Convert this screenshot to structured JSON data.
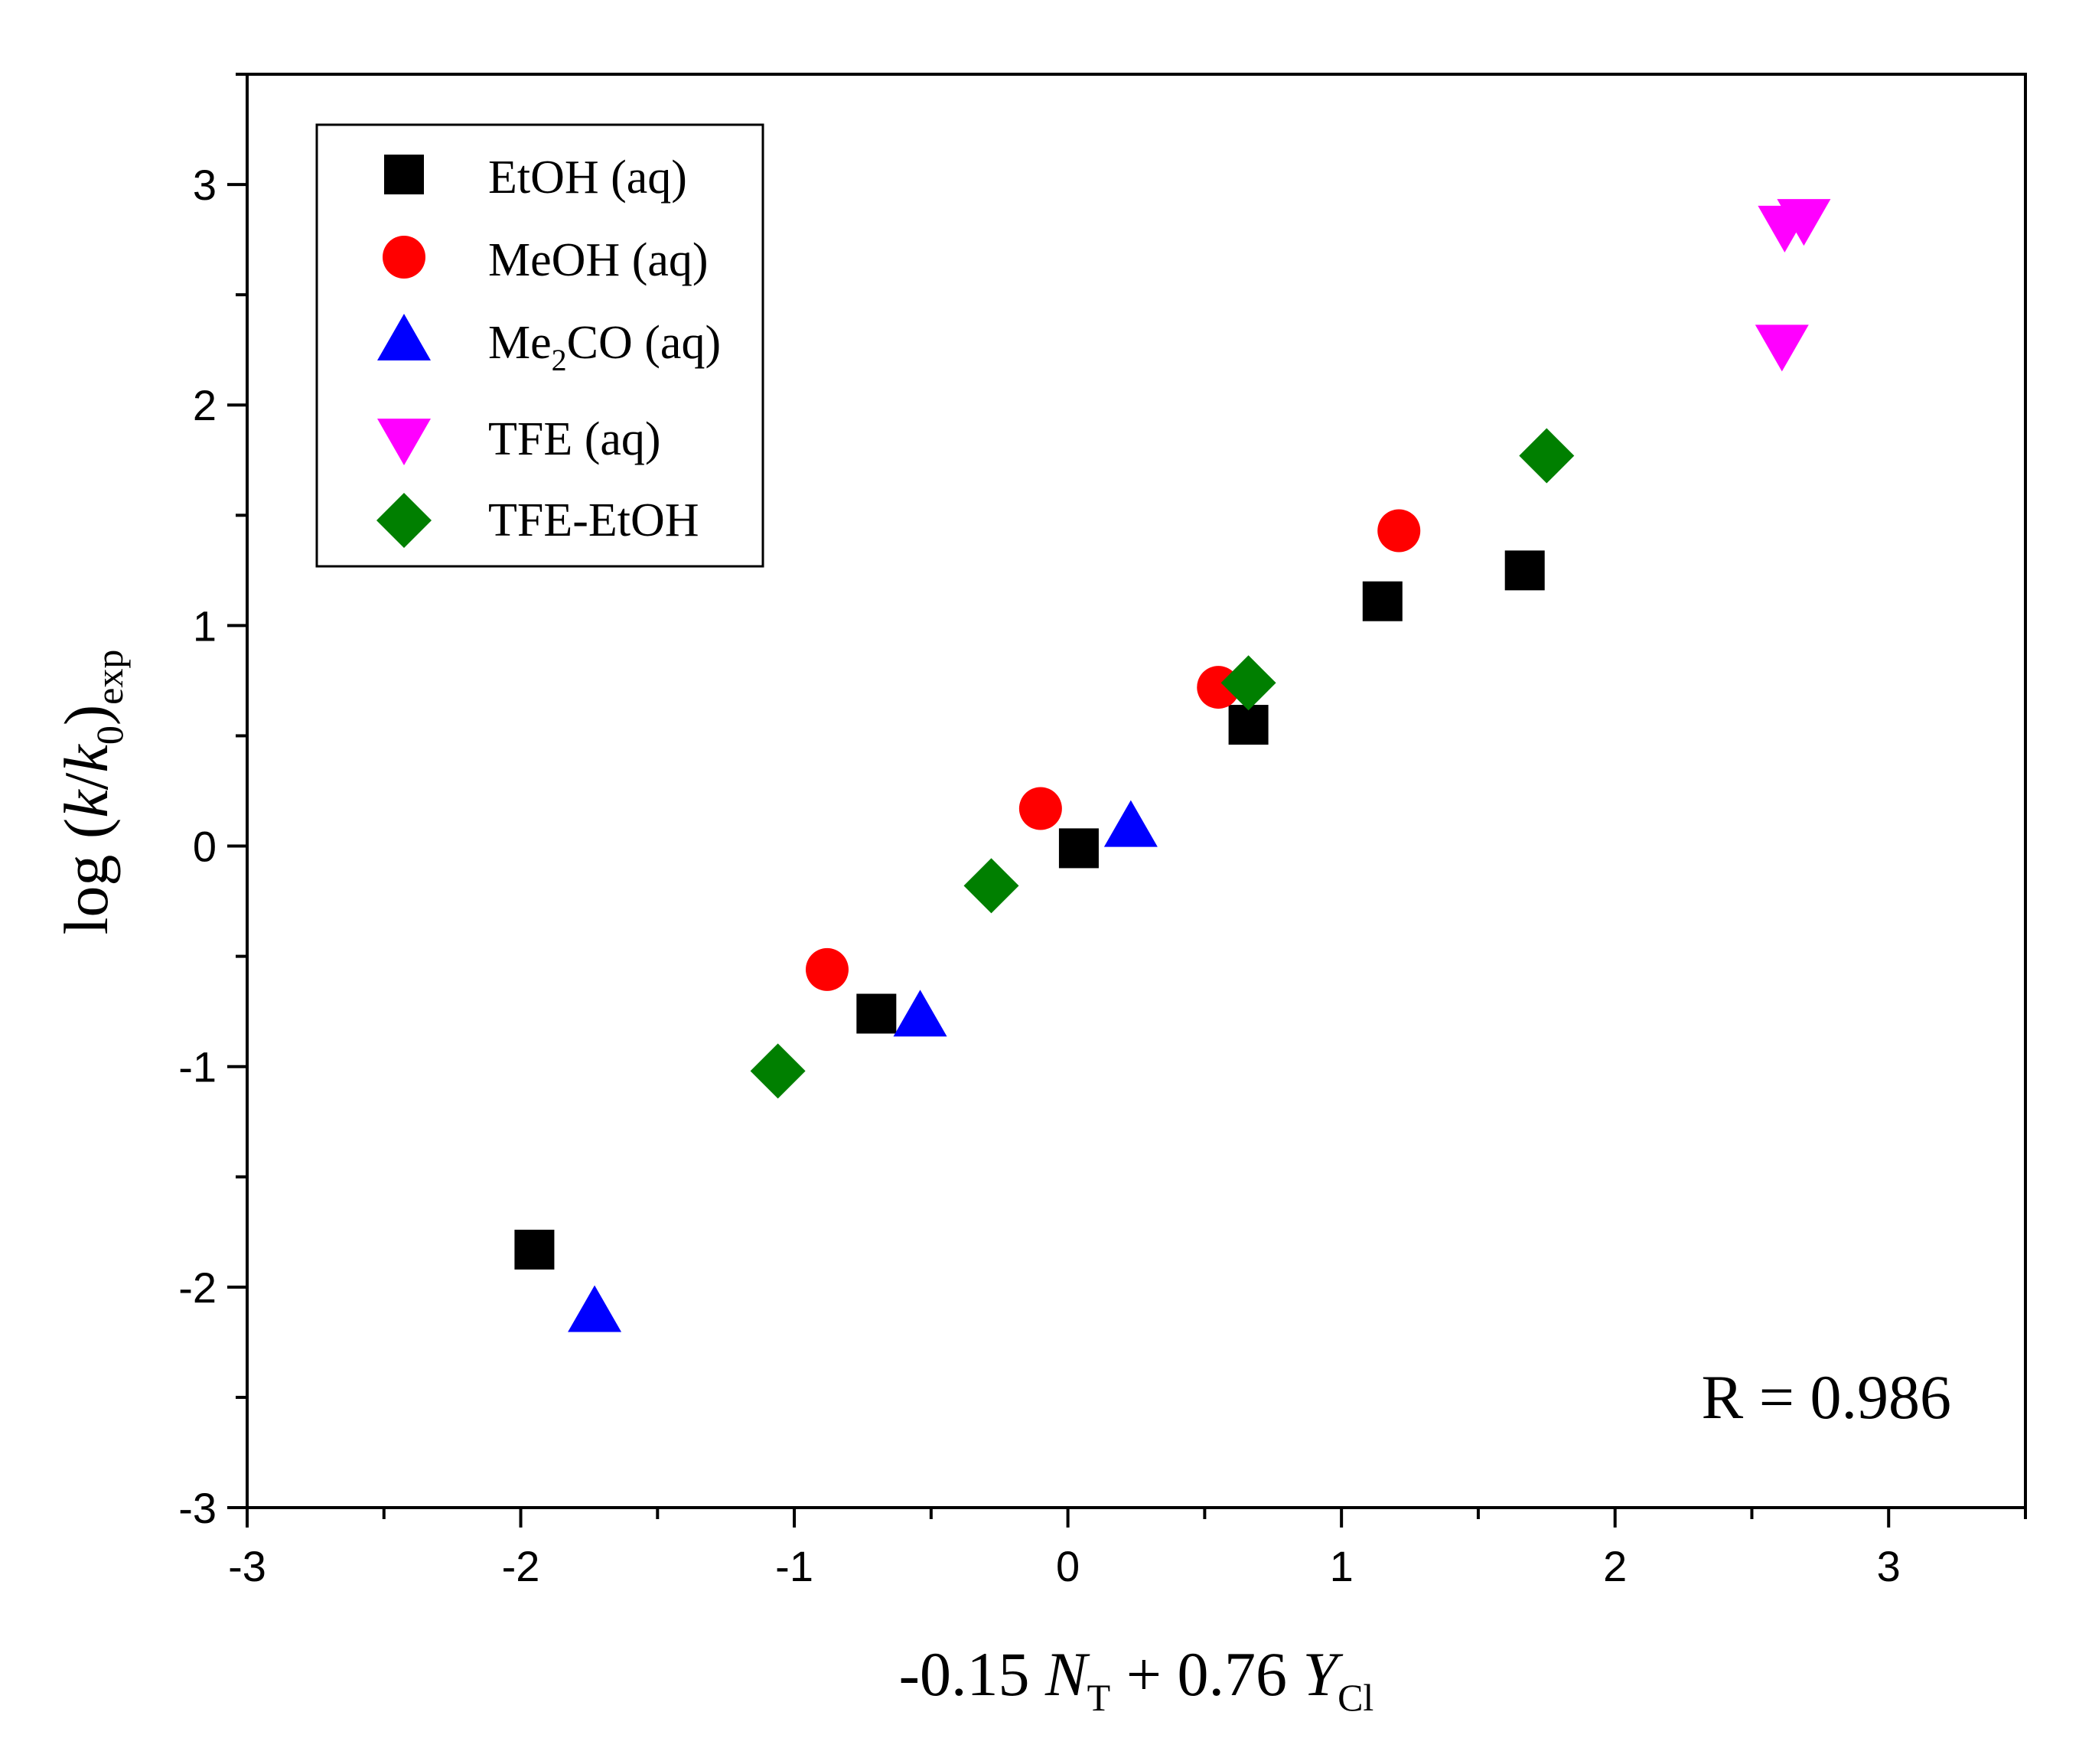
{
  "chart_data": {
    "type": "scatter",
    "xlim": [
      -3,
      3.5
    ],
    "ylim": [
      -3,
      3.5
    ],
    "x_ticks": [
      -3,
      -2,
      -1,
      0,
      1,
      2,
      3
    ],
    "y_ticks": [
      -3,
      -2,
      -1,
      0,
      1,
      2,
      3
    ],
    "x_tick_labels": [
      "-3",
      "-2",
      "-1",
      "0",
      "1",
      "2",
      "3"
    ],
    "y_tick_labels": [
      "-3",
      "-2",
      "-1",
      "0",
      "1",
      "2",
      "3"
    ],
    "xlabel": {
      "pre": "-0.15 ",
      "var1": "N",
      "sub1": "T",
      "mid": " + 0.76 ",
      "var2": "Y",
      "sub2": "Cl"
    },
    "ylabel": {
      "pre": "log (",
      "var1": "k",
      "slash": "/",
      "var2": "k",
      "sub2": "0",
      "post": ")",
      "sub_post": "exp"
    },
    "annotation": "R = 0.986",
    "legend_position": "top-left",
    "series": [
      {
        "name": "EtOH (aq)",
        "legend_label": "EtOH (aq)",
        "marker": "square",
        "color": "#000000",
        "points": [
          [
            -1.95,
            -1.83
          ],
          [
            -0.7,
            -0.76
          ],
          [
            0.04,
            -0.01
          ],
          [
            0.66,
            0.55
          ],
          [
            1.15,
            1.11
          ],
          [
            1.67,
            1.25
          ]
        ]
      },
      {
        "name": "MeOH (aq)",
        "legend_label": "MeOH (aq)",
        "marker": "circle",
        "color": "#ff0000",
        "points": [
          [
            -0.88,
            -0.56
          ],
          [
            -0.1,
            0.17
          ],
          [
            0.55,
            0.72
          ],
          [
            1.21,
            1.43
          ]
        ]
      },
      {
        "name": "Me2CO (aq)",
        "legend_pre": "Me",
        "legend_sub": "2",
        "legend_post": "CO (aq)",
        "marker": "triangle-up",
        "color": "#0000ff",
        "points": [
          [
            -1.73,
            -2.11
          ],
          [
            -0.54,
            -0.77
          ],
          [
            0.23,
            0.09
          ]
        ]
      },
      {
        "name": "TFE (aq)",
        "legend_label": "TFE (aq)",
        "marker": "triangle-down",
        "color": "#ff00ff",
        "points": [
          [
            2.61,
            2.27
          ],
          [
            2.62,
            2.81
          ],
          [
            2.69,
            2.84
          ]
        ]
      },
      {
        "name": "TFE-EtOH",
        "legend_label": "TFE-EtOH",
        "marker": "diamond",
        "color": "#007f00",
        "points": [
          [
            -1.06,
            -1.02
          ],
          [
            -0.28,
            -0.18
          ],
          [
            0.66,
            0.74
          ],
          [
            1.75,
            1.77
          ]
        ]
      }
    ]
  }
}
